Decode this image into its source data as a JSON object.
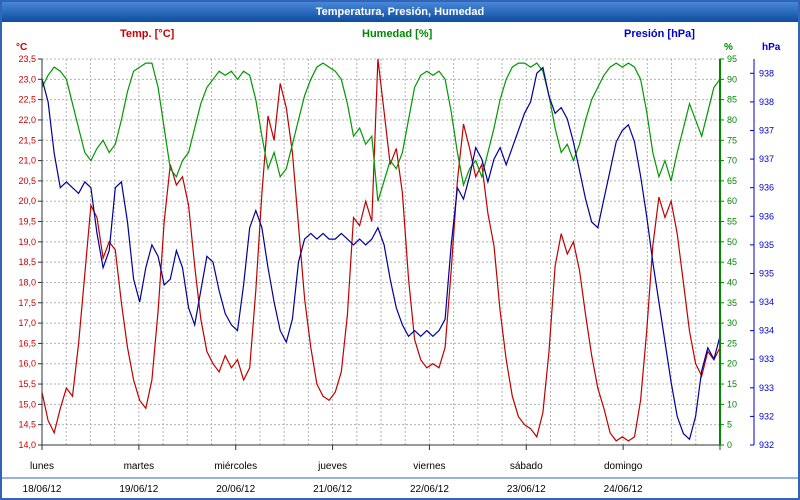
{
  "title_bar": {
    "title": "Temperatura, Presión, Humedad"
  },
  "legend": {
    "temp": "Temp. [°C]",
    "humidity": "Humedad [%]",
    "pressure": "Presión [hPa]"
  },
  "colors": {
    "temp": "#c00000",
    "humidity": "#009900",
    "pressure": "#000099",
    "temp_tick": "#cc0000",
    "humidity_tick": "#008800",
    "pressure_tick": "#0000cc",
    "grid": "#b3b3b3",
    "axis": "#333333",
    "frame": "#2f66b8"
  },
  "chart_data": {
    "type": "line",
    "title": "Temperatura, Presión, Humedad",
    "x_days": [
      {
        "name": "lunes",
        "date": "18/06/12"
      },
      {
        "name": "martes",
        "date": "19/06/12"
      },
      {
        "name": "miércoles",
        "date": "20/06/12"
      },
      {
        "name": "jueves",
        "date": "21/06/12"
      },
      {
        "name": "viernes",
        "date": "22/06/12"
      },
      {
        "name": "sábado",
        "date": "23/06/12"
      },
      {
        "name": "domingo",
        "date": "24/06/12"
      }
    ],
    "axes": {
      "temperature": {
        "unit": "°C",
        "min": 14.0,
        "max": 23.5,
        "step": 0.5,
        "side": "left"
      },
      "humidity": {
        "unit": "%",
        "min": 0,
        "max": 95,
        "step": 5,
        "side": "right"
      },
      "pressure": {
        "unit": "hPa",
        "min": 931.5,
        "max": 938.25,
        "side": "far-right",
        "tick_values": [
          938,
          937.5,
          937,
          936.5,
          936,
          935.5,
          935,
          934.5,
          934,
          933.5,
          933,
          932.5,
          932,
          931.5
        ],
        "tick_labels": [
          "938",
          "938",
          "937",
          "937",
          "936",
          "936",
          "935",
          "935",
          "934",
          "934",
          "933",
          "933",
          "932",
          "932"
        ]
      }
    },
    "grid": {
      "h_divisions": 19,
      "v_divisions_per_day": 4
    },
    "series": [
      {
        "name": "Temp. [°C]",
        "axis": "temperature",
        "color_key": "temp",
        "values": [
          15.3,
          14.6,
          14.3,
          14.9,
          15.4,
          15.2,
          16.5,
          18.2,
          19.9,
          19.6,
          18.6,
          19.0,
          18.8,
          17.5,
          16.4,
          15.6,
          15.1,
          14.9,
          15.6,
          17.3,
          19.5,
          20.9,
          20.4,
          20.6,
          19.9,
          18.4,
          17.1,
          16.3,
          16.0,
          15.8,
          16.2,
          15.9,
          16.1,
          15.6,
          15.9,
          17.8,
          20.2,
          22.1,
          21.5,
          22.9,
          22.3,
          21.2,
          19.4,
          17.6,
          16.4,
          15.5,
          15.2,
          15.1,
          15.3,
          15.8,
          17.2,
          19.6,
          19.4,
          20.0,
          19.5,
          23.5,
          22.2,
          20.9,
          21.3,
          20.2,
          18.1,
          16.6,
          16.1,
          15.9,
          16.0,
          15.9,
          16.4,
          18.3,
          20.5,
          21.9,
          21.3,
          20.6,
          20.9,
          19.7,
          18.9,
          17.3,
          16.1,
          15.2,
          14.7,
          14.5,
          14.4,
          14.2,
          14.8,
          16.3,
          18.4,
          19.2,
          18.7,
          19.0,
          18.3,
          17.2,
          16.2,
          15.4,
          14.9,
          14.3,
          14.1,
          14.2,
          14.1,
          14.2,
          15.1,
          16.8,
          18.9,
          20.1,
          19.6,
          20.0,
          19.2,
          18.0,
          16.8,
          16.0,
          15.7,
          16.3,
          16.1,
          16.4
        ]
      },
      {
        "name": "Humedad [%]",
        "axis": "humidity",
        "color_key": "humidity",
        "values": [
          88,
          91,
          93,
          92,
          90,
          84,
          78,
          72,
          70,
          73,
          75,
          72,
          74,
          80,
          87,
          92,
          93,
          94,
          94,
          88,
          78,
          68,
          66,
          70,
          72,
          78,
          84,
          88,
          90,
          92,
          91,
          92,
          90,
          92,
          91,
          85,
          76,
          68,
          72,
          66,
          68,
          74,
          80,
          86,
          90,
          93,
          94,
          93,
          92,
          90,
          84,
          76,
          78,
          74,
          76,
          60,
          65,
          70,
          68,
          72,
          80,
          88,
          91,
          92,
          91,
          92,
          90,
          82,
          72,
          64,
          68,
          70,
          66,
          72,
          78,
          85,
          90,
          93,
          94,
          94,
          93,
          94,
          92,
          86,
          78,
          72,
          74,
          70,
          74,
          80,
          85,
          88,
          91,
          93,
          94,
          93,
          94,
          93,
          90,
          82,
          72,
          66,
          70,
          65,
          72,
          78,
          84,
          80,
          76,
          82,
          88,
          90
        ]
      },
      {
        "name": "Presión [hPa]",
        "axis": "pressure",
        "color_key": "pressure",
        "values": [
          937.9,
          937.5,
          936.6,
          936.0,
          936.1,
          936.0,
          935.9,
          936.1,
          936.0,
          935.2,
          934.6,
          934.9,
          936.0,
          936.1,
          935.4,
          934.4,
          934.0,
          934.6,
          935.0,
          934.8,
          934.3,
          934.4,
          934.9,
          934.6,
          933.9,
          933.6,
          934.2,
          934.8,
          934.7,
          934.2,
          933.8,
          933.6,
          933.5,
          934.3,
          935.3,
          935.6,
          935.3,
          934.6,
          934.0,
          933.5,
          933.3,
          933.7,
          934.7,
          935.1,
          935.2,
          935.1,
          935.2,
          935.1,
          935.1,
          935.2,
          935.1,
          935.0,
          935.1,
          935.0,
          935.1,
          935.3,
          935.0,
          934.4,
          933.9,
          933.6,
          933.4,
          933.5,
          933.4,
          933.5,
          933.4,
          933.5,
          933.7,
          935.0,
          936.0,
          935.8,
          936.2,
          936.7,
          936.5,
          936.1,
          936.5,
          936.7,
          936.4,
          936.7,
          937.0,
          937.3,
          937.5,
          938.0,
          938.1,
          937.6,
          937.3,
          937.4,
          937.2,
          936.8,
          936.3,
          935.8,
          935.4,
          935.3,
          935.8,
          936.3,
          936.8,
          937.0,
          937.1,
          936.8,
          936.2,
          935.5,
          934.7,
          934.0,
          933.3,
          932.6,
          932.0,
          931.7,
          931.6,
          932.0,
          932.8,
          933.2,
          933.0,
          933.4
        ]
      }
    ]
  }
}
